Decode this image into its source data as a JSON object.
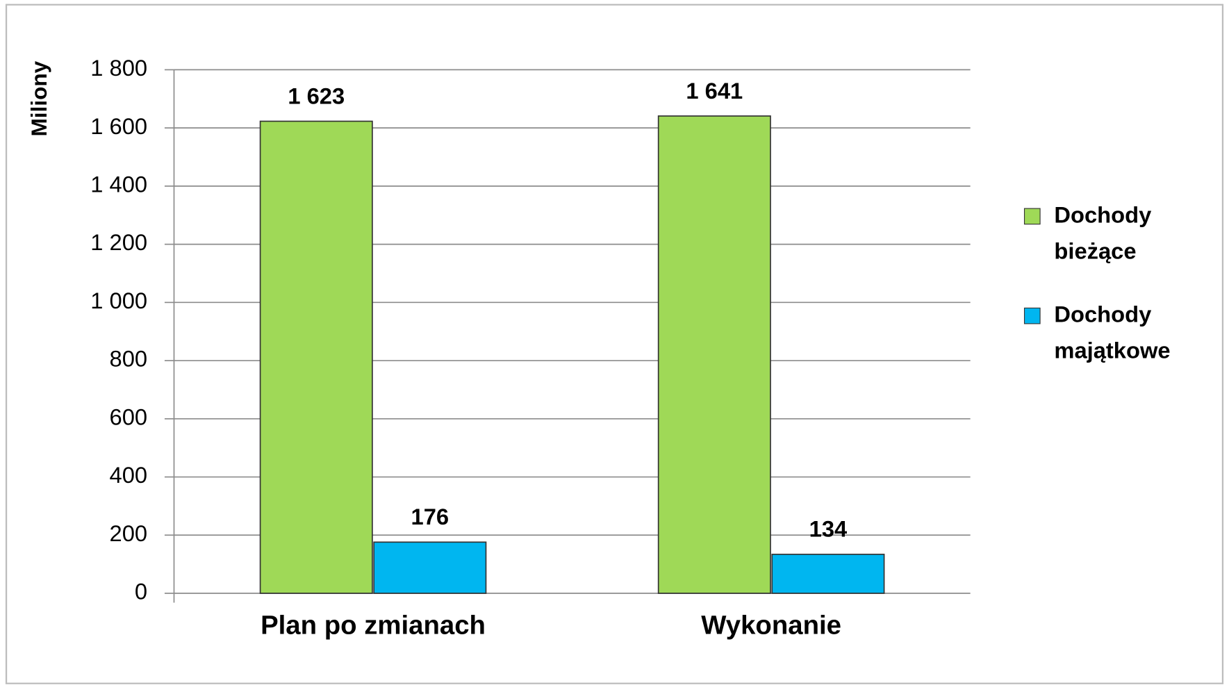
{
  "chart_data": {
    "type": "bar",
    "y_axis_label": "Miliony",
    "categories": [
      "Plan po zmianach",
      "Wykonanie"
    ],
    "series": [
      {
        "name": "Dochody bieżące",
        "color": "#9fd957",
        "values": [
          1623,
          1641
        ],
        "value_labels": [
          "1 623",
          "1 641"
        ]
      },
      {
        "name": "Dochody majątkowe",
        "color": "#00b6f0",
        "values": [
          176,
          134
        ]
      }
    ],
    "ylim": [
      0,
      1800
    ],
    "yticks": [
      0,
      200,
      400,
      600,
      800,
      {
        "value": 1000,
        "label": "1 000"
      },
      {
        "value": 1200,
        "label": "1 200"
      },
      {
        "value": 1400,
        "label": "1 400"
      },
      {
        "value": 1600,
        "label": "1 600"
      },
      {
        "value": 1800,
        "label": "1 800"
      }
    ],
    "grid": true,
    "legend": "right"
  }
}
